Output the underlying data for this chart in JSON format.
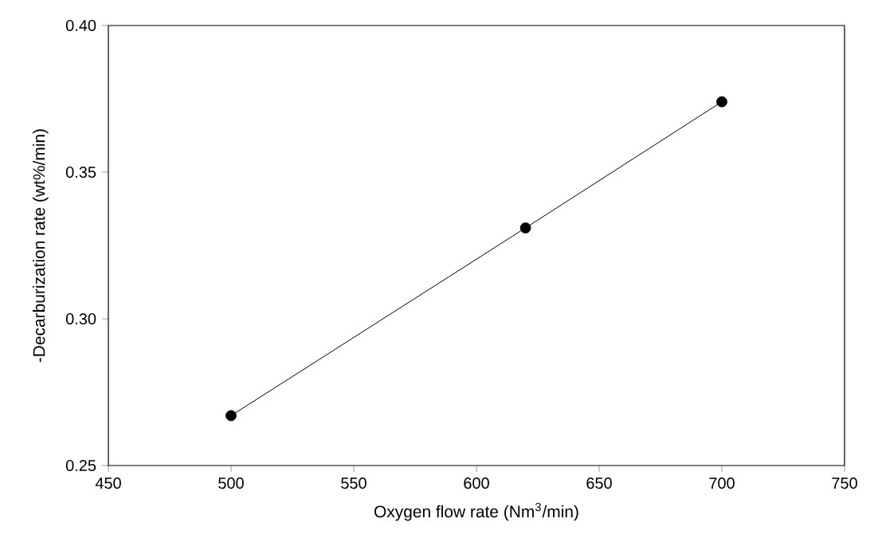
{
  "chart_data": {
    "type": "line",
    "xlabel": "Oxygen flow rate (Nm$^{3}$/min)",
    "ylabel": "-Decarburization rate (wt%/min)",
    "x": [
      500,
      620,
      700
    ],
    "series": [
      {
        "color": "#000000",
        "values": [
          0.267,
          0.331,
          0.374
        ]
      }
    ],
    "marker": "circle",
    "line_style": "solid",
    "grid": false,
    "xlim": [
      450,
      750
    ],
    "ylim": [
      0.25,
      0.4
    ],
    "xticks": [
      450,
      500,
      550,
      600,
      650,
      700,
      750
    ],
    "yticks": [
      {
        "value": 0.25,
        "label": "0.25"
      },
      {
        "value": 0.3,
        "label": "0.30"
      },
      {
        "value": 0.35,
        "label": "0.35"
      },
      {
        "value": 0.4,
        "label": "0.40"
      }
    ]
  }
}
